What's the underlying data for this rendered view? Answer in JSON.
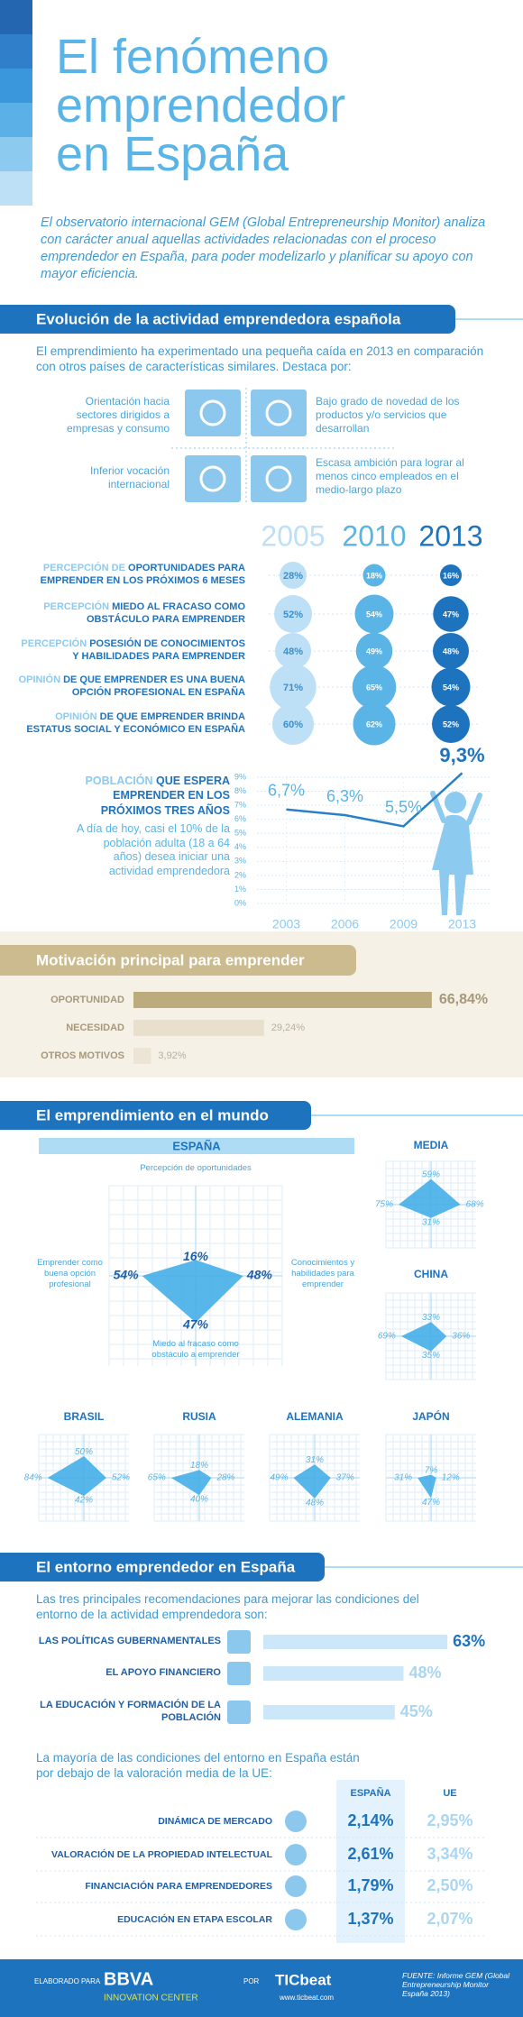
{
  "header": {
    "title": "El fenómeno emprendedor en España",
    "intro": "El observatorio internacional GEM (Global Entrepreneurship Monitor) analiza con carácter anual aquellas actividades relacionadas con el proceso emprendedor en España, para poder modelizarlo y planificar su apoyo con mayor eficiencia."
  },
  "evolution": {
    "title": "Evolución de la actividad emprendedora española",
    "intro": "El emprendimiento ha experimentado una pequeña caída en 2013 en comparación con otros países de características similares. Destaca por:",
    "features": [
      "Orientación hacia sectores dirigidos a empresas y consumo",
      "Bajo grado de novedad de los productos y/o servicios que desarrollan",
      "Inferior vocación internacional",
      "Escasa ambición para lograr al menos cinco empleados en el medio-largo plazo"
    ],
    "years": [
      "2005",
      "2010",
      "2013"
    ],
    "indicators": [
      {
        "prefix": "PERCEPCIÓN DE",
        "label": "OPORTUNIDADES PARA EMPRENDER EN LOS PRÓXIMOS 6 MESES",
        "values": [
          28,
          18,
          16
        ],
        "value_labels": [
          "28%",
          "18%",
          "16%"
        ]
      },
      {
        "prefix": "PERCEPCIÓN",
        "label": "MIEDO AL FRACASO COMO OBSTÁCULO PARA EMPRENDER",
        "values": [
          52,
          54,
          47
        ],
        "value_labels": [
          "52%",
          "54%",
          "47%"
        ]
      },
      {
        "prefix": "PERCEPCIÓN",
        "label": "POSESIÓN DE CONOCIMIENTOS Y HABILIDADES PARA EMPRENDER",
        "values": [
          48,
          49,
          48
        ],
        "value_labels": [
          "48%",
          "49%",
          "48%"
        ]
      },
      {
        "prefix": "OPINIÓN",
        "label": "DE QUE EMPRENDER ES UNA BUENA OPCIÓN PROFESIONAL EN ESPAÑA",
        "values": [
          71,
          65,
          54
        ],
        "value_labels": [
          "71%",
          "65%",
          "54%"
        ]
      },
      {
        "prefix": "OPINIÓN",
        "label": "DE QUE EMPRENDER BRINDA ESTATUS SOCIAL Y ECONÓMICO EN ESPAÑA",
        "values": [
          60,
          62,
          52
        ],
        "value_labels": [
          "60%",
          "62%",
          "52%"
        ]
      }
    ],
    "population": {
      "type": "line",
      "prefix": "POBLACIÓN",
      "label": "QUE ESPERA EMPRENDER EN LOS PRÓXIMOS TRES AÑOS",
      "text": "A día de hoy, casi el 10% de la población adulta (18 a 64 años) desea iniciar una actividad emprendedora",
      "categories": [
        "2003",
        "2006",
        "2009",
        "2013"
      ],
      "values": [
        6.7,
        6.3,
        5.5,
        9.3
      ],
      "value_labels": [
        "6,7%",
        "6,3%",
        "5,5%",
        "9,3%"
      ],
      "ylim": [
        0,
        9
      ],
      "yticks": [
        {
          "value": 0,
          "label": "0%"
        },
        {
          "value": 1,
          "label": "1%"
        },
        {
          "value": 2,
          "label": "2%"
        },
        {
          "value": 3,
          "label": "3%"
        },
        {
          "value": 4,
          "label": "4%"
        },
        {
          "value": 5,
          "label": "5%"
        },
        {
          "value": 6,
          "label": "6%"
        },
        {
          "value": 7,
          "label": "7%"
        },
        {
          "value": 8,
          "label": "8%"
        },
        {
          "value": 9,
          "label": "9%"
        }
      ],
      "color": "#2a7fc6",
      "grid": true
    }
  },
  "motivation": {
    "type": "bar",
    "title": "Motivación principal para emprender",
    "categories": [
      "OPORTUNIDAD",
      "NECESIDAD",
      "OTROS MOTIVOS"
    ],
    "values": [
      66.84,
      29.24,
      3.92
    ],
    "value_labels": [
      "66,84%",
      "29,24%",
      "3,92%"
    ],
    "colors": [
      "#bcab7c",
      "#e8e0cc",
      "#ece5d5"
    ]
  },
  "world": {
    "title": "El emprendimiento en el mundo",
    "spain": {
      "name": "ESPAÑA",
      "axes": [
        "Percepción de oportunidades",
        "Conocimientos y habilidades para emprender",
        "Miedo al fracaso como obstáculo a emprender",
        "Emprender como buena opción profesional"
      ],
      "values": [
        16,
        48,
        47,
        54
      ],
      "value_labels": [
        "16%",
        "48%",
        "47%",
        "54%"
      ]
    },
    "countries": [
      {
        "name": "MEDIA",
        "values": [
          59,
          68,
          31,
          75
        ],
        "value_labels": [
          "59%",
          "68%",
          "31%",
          "75%"
        ]
      },
      {
        "name": "CHINA",
        "values": [
          33,
          36,
          35,
          69
        ],
        "value_labels": [
          "33%",
          "36%",
          "35%",
          "69%"
        ]
      },
      {
        "name": "BRASIL",
        "values": [
          50,
          52,
          42,
          84
        ],
        "value_labels": [
          "50%",
          "52%",
          "42%",
          "84%"
        ]
      },
      {
        "name": "RUSIA",
        "values": [
          18,
          28,
          40,
          65
        ],
        "value_labels": [
          "18%",
          "28%",
          "40%",
          "65%"
        ]
      },
      {
        "name": "ALEMANIA",
        "values": [
          31,
          37,
          48,
          49
        ],
        "value_labels": [
          "31%",
          "37%",
          "48%",
          "49%"
        ]
      },
      {
        "name": "JAPÓN",
        "values": [
          7,
          12,
          47,
          31
        ],
        "value_labels": [
          "7%",
          "12%",
          "47%",
          "31%"
        ]
      }
    ],
    "color": "#45aee8"
  },
  "environment": {
    "title": "El entorno emprendedor en España",
    "intro": "Las tres principales recomendaciones para mejorar las condiciones del entorno de la actividad emprendedora son:",
    "recommendations": {
      "type": "bar",
      "categories": [
        "LAS POLÍTICAS GUBERNAMENTALES",
        "EL APOYO FINANCIERO",
        "LA EDUCACIÓN Y FORMACIÓN DE LA POBLACIÓN"
      ],
      "values": [
        63,
        48,
        45
      ],
      "value_labels": [
        "63%",
        "48%",
        "45%"
      ],
      "color": "#cbe7f8"
    },
    "comparison": {
      "intro": "La mayoría de las condiciones del entorno en España están por debajo de la valoración media de la UE:",
      "columns": [
        "ESPAÑA",
        "UE"
      ],
      "rows": [
        [
          "DINÁMICA DE MERCADO",
          "2,14%",
          "2,95%"
        ],
        [
          "VALORACIÓN DE LA PROPIEDAD INTELECTUAL",
          "2,61%",
          "3,34%"
        ],
        [
          "FINANCIACIÓN PARA EMPRENDEDORES",
          "1,79%",
          "2,50%"
        ],
        [
          "EDUCACIÓN EN ETAPA ESCOLAR",
          "1,37%",
          "2,07%"
        ]
      ]
    }
  },
  "footer": {
    "made_for": "ELABORADO PARA",
    "brand": "BBVA",
    "brand_sub": "INNOVATION CENTER",
    "by": "POR",
    "publisher": "TICbeat",
    "url": "www.ticbeat.com",
    "source": "FUENTE: Informe GEM (Global Entrepreneurship Monitor España 2013)"
  }
}
